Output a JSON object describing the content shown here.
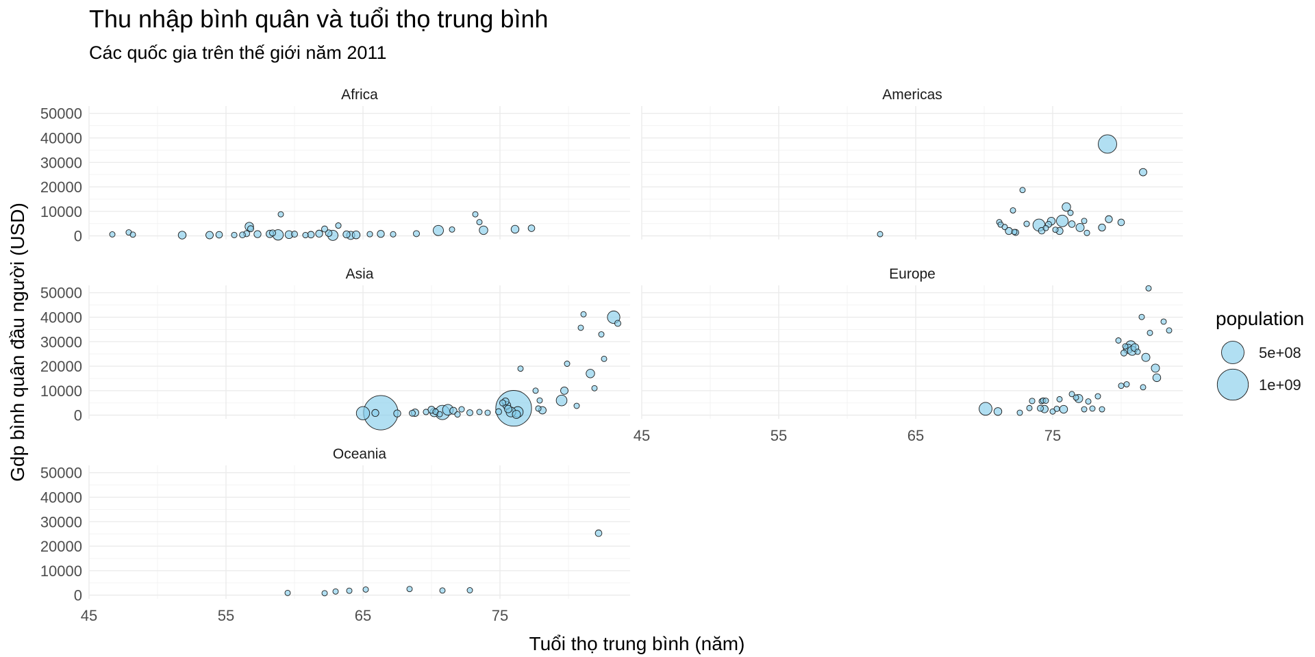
{
  "chart_data": {
    "type": "scatter",
    "title": "Thu nhập bình quân và tuổi thọ trung bình",
    "subtitle": "Các quốc gia trên thế giới năm 2011",
    "xlabel": "Tuổi thọ trung bình (năm)",
    "ylabel": "Gdp bình quân đầu người (USD)",
    "xlim": [
      45,
      84.5
    ],
    "ylim": [
      -1500,
      53000
    ],
    "x_ticks": [
      "45",
      "55",
      "65",
      "75"
    ],
    "y_ticks": [
      "0",
      "10000",
      "20000",
      "30000",
      "40000",
      "50000"
    ],
    "grid": true,
    "point_fill": "#87ceeb",
    "point_stroke": "#1a1a1a",
    "legend": {
      "title": "population",
      "position": "right",
      "entries": [
        {
          "label": "5e+08",
          "size": 500000000
        },
        {
          "label": "1e+09",
          "size": 1000000000
        }
      ]
    },
    "facets": [
      {
        "name": "Africa",
        "points": [
          [
            46.7,
            600,
            10
          ],
          [
            47.9,
            1400,
            15
          ],
          [
            48.2,
            500,
            12
          ],
          [
            51.8,
            300,
            40
          ],
          [
            53.8,
            300,
            35
          ],
          [
            54.5,
            450,
            25
          ],
          [
            55.6,
            350,
            15
          ],
          [
            56.2,
            400,
            18
          ],
          [
            56.5,
            900,
            20
          ],
          [
            56.7,
            3800,
            50
          ],
          [
            56.8,
            2900,
            20
          ],
          [
            57.3,
            700,
            30
          ],
          [
            58.2,
            800,
            35
          ],
          [
            58.4,
            1200,
            20
          ],
          [
            58.8,
            400,
            85
          ],
          [
            59.0,
            8800,
            5
          ],
          [
            59.6,
            500,
            40
          ],
          [
            60.0,
            700,
            20
          ],
          [
            60.8,
            300,
            15
          ],
          [
            61.2,
            500,
            25
          ],
          [
            61.8,
            900,
            30
          ],
          [
            62.2,
            2800,
            20
          ],
          [
            62.5,
            1100,
            25
          ],
          [
            62.8,
            200,
            80
          ],
          [
            63.2,
            4200,
            15
          ],
          [
            63.8,
            600,
            30
          ],
          [
            64.1,
            200,
            45
          ],
          [
            64.5,
            400,
            40
          ],
          [
            65.5,
            700,
            15
          ],
          [
            66.3,
            800,
            30
          ],
          [
            67.2,
            650,
            15
          ],
          [
            68.9,
            900,
            20
          ],
          [
            70.5,
            2200,
            80
          ],
          [
            71.5,
            2600,
            10
          ],
          [
            73.2,
            8800,
            10
          ],
          [
            73.5,
            5600,
            10
          ],
          [
            73.8,
            2300,
            50
          ],
          [
            76.1,
            2700,
            40
          ],
          [
            77.3,
            3100,
            25
          ]
        ]
      },
      {
        "name": "Americas",
        "points": [
          [
            62.4,
            700,
            10
          ],
          [
            71.1,
            5600,
            10
          ],
          [
            71.2,
            4600,
            10
          ],
          [
            71.5,
            3600,
            5
          ],
          [
            71.8,
            2000,
            30
          ],
          [
            72.1,
            10400,
            5
          ],
          [
            72.2,
            1600,
            10
          ],
          [
            72.3,
            1400,
            20
          ],
          [
            72.8,
            18700,
            5
          ],
          [
            73.1,
            4900,
            15
          ],
          [
            74.0,
            4400,
            120
          ],
          [
            74.2,
            2100,
            25
          ],
          [
            74.5,
            3200,
            10
          ],
          [
            74.7,
            4700,
            20
          ],
          [
            74.9,
            6000,
            40
          ],
          [
            75.2,
            2500,
            10
          ],
          [
            75.5,
            2000,
            30
          ],
          [
            75.7,
            6100,
            110
          ],
          [
            76.0,
            11800,
            50
          ],
          [
            76.3,
            9400,
            10
          ],
          [
            76.4,
            4800,
            25
          ],
          [
            77.0,
            3400,
            45
          ],
          [
            77.3,
            6100,
            10
          ],
          [
            77.5,
            1200,
            15
          ],
          [
            78.6,
            3400,
            30
          ],
          [
            79.0,
            37500,
            320
          ],
          [
            79.1,
            6800,
            30
          ],
          [
            80.0,
            5500,
            25
          ],
          [
            81.6,
            26000,
            35
          ]
        ]
      },
      {
        "name": "Asia",
        "points": [
          [
            65.0,
            800,
            150
          ],
          [
            65.9,
            900,
            30
          ],
          [
            66.3,
            1000,
            1240
          ],
          [
            67.5,
            700,
            30
          ],
          [
            68.6,
            800,
            20
          ],
          [
            68.8,
            1000,
            35
          ],
          [
            69.6,
            1300,
            15
          ],
          [
            70.0,
            2200,
            30
          ],
          [
            70.2,
            1100,
            50
          ],
          [
            70.3,
            1400,
            15
          ],
          [
            70.6,
            400,
            10
          ],
          [
            70.8,
            1100,
            180
          ],
          [
            71.2,
            2200,
            90
          ],
          [
            71.6,
            1800,
            30
          ],
          [
            71.9,
            300,
            15
          ],
          [
            72.2,
            2400,
            15
          ],
          [
            72.8,
            1000,
            20
          ],
          [
            73.5,
            1300,
            10
          ],
          [
            74.1,
            1000,
            10
          ],
          [
            74.9,
            1400,
            20
          ],
          [
            75.2,
            5000,
            20
          ],
          [
            75.4,
            5600,
            30
          ],
          [
            75.5,
            4000,
            40
          ],
          [
            75.6,
            2500,
            35
          ],
          [
            75.8,
            1300,
            70
          ],
          [
            76.0,
            2800,
            1350
          ],
          [
            76.2,
            300,
            45
          ],
          [
            76.3,
            1300,
            90
          ],
          [
            76.5,
            19000,
            10
          ],
          [
            77.6,
            10000,
            10
          ],
          [
            77.8,
            2700,
            15
          ],
          [
            77.9,
            6000,
            10
          ],
          [
            78.1,
            2000,
            35
          ],
          [
            79.5,
            6000,
            90
          ],
          [
            79.7,
            10000,
            35
          ],
          [
            79.9,
            21000,
            10
          ],
          [
            80.6,
            3800,
            10
          ],
          [
            80.9,
            35700,
            10
          ],
          [
            81.1,
            41200,
            5
          ],
          [
            81.6,
            17000,
            50
          ],
          [
            81.9,
            11000,
            10
          ],
          [
            82.4,
            33000,
            10
          ],
          [
            82.6,
            23000,
            10
          ],
          [
            83.3,
            40000,
            130
          ],
          [
            83.6,
            37500,
            20
          ]
        ]
      },
      {
        "name": "Europe",
        "points": [
          [
            70.1,
            2600,
            140
          ],
          [
            71.0,
            1500,
            40
          ],
          [
            72.6,
            1000,
            10
          ],
          [
            73.3,
            2900,
            10
          ],
          [
            73.5,
            5800,
            15
          ],
          [
            74.1,
            2800,
            20
          ],
          [
            74.2,
            5700,
            10
          ],
          [
            74.3,
            6000,
            10
          ],
          [
            74.4,
            2500,
            35
          ],
          [
            74.5,
            5900,
            10
          ],
          [
            75.0,
            1500,
            10
          ],
          [
            75.3,
            2600,
            10
          ],
          [
            75.5,
            6500,
            10
          ],
          [
            75.8,
            2400,
            40
          ],
          [
            76.4,
            8600,
            10
          ],
          [
            76.7,
            7200,
            10
          ],
          [
            76.9,
            6800,
            45
          ],
          [
            77.3,
            2400,
            10
          ],
          [
            77.6,
            5600,
            10
          ],
          [
            77.9,
            2700,
            10
          ],
          [
            78.3,
            7700,
            10
          ],
          [
            78.6,
            2400,
            10
          ],
          [
            79.8,
            30500,
            10
          ],
          [
            80.0,
            12000,
            10
          ],
          [
            80.2,
            25400,
            20
          ],
          [
            80.3,
            28100,
            10
          ],
          [
            80.4,
            12600,
            10
          ],
          [
            80.5,
            27100,
            60
          ],
          [
            80.7,
            28300,
            80
          ],
          [
            80.8,
            26300,
            60
          ],
          [
            81.0,
            27600,
            40
          ],
          [
            81.2,
            25900,
            10
          ],
          [
            81.5,
            40100,
            10
          ],
          [
            81.6,
            11400,
            10
          ],
          [
            81.8,
            23600,
            45
          ],
          [
            82.0,
            51800,
            5
          ],
          [
            82.1,
            33600,
            10
          ],
          [
            82.5,
            19200,
            45
          ],
          [
            82.6,
            15300,
            40
          ],
          [
            83.1,
            38200,
            10
          ],
          [
            83.5,
            34600,
            5
          ]
        ]
      },
      {
        "name": "Oceania",
        "points": [
          [
            59.5,
            900,
            10
          ],
          [
            62.2,
            800,
            5
          ],
          [
            63.0,
            1500,
            5
          ],
          [
            64.0,
            1800,
            5
          ],
          [
            65.2,
            2300,
            5
          ],
          [
            68.4,
            2500,
            5
          ],
          [
            70.8,
            1900,
            5
          ],
          [
            72.8,
            2000,
            5
          ],
          [
            82.2,
            25300,
            25
          ]
        ]
      }
    ]
  }
}
